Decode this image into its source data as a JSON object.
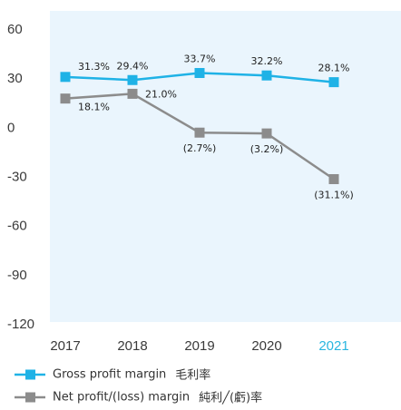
{
  "chart_data": {
    "type": "line",
    "categories": [
      "2017",
      "2018",
      "2019",
      "2020",
      "2021"
    ],
    "category_highlight": {
      "index": 4,
      "color": "#29b6e0"
    },
    "series": [
      {
        "name": "Gross profit margin",
        "name_zh": "毛利率",
        "color": "#1fb2e6",
        "values": [
          31.3,
          29.4,
          33.7,
          32.2,
          28.1
        ],
        "value_labels": [
          "31.3%",
          "29.4%",
          "33.7%",
          "32.2%",
          "28.1%"
        ]
      },
      {
        "name": "Net profit/(loss) margin",
        "name_zh": "純利╱(虧)率",
        "color": "#8c8c8c",
        "values": [
          18.1,
          21.0,
          -2.7,
          -3.2,
          -31.1
        ],
        "value_labels": [
          "18.1%",
          "21.0%",
          "(2.7%)",
          "(3.2%)",
          "(31.1%)"
        ]
      }
    ],
    "ylim": [
      -120,
      60
    ],
    "yticks": [
      60,
      30,
      0,
      -30,
      -60,
      -90,
      -120
    ],
    "grid": false
  }
}
